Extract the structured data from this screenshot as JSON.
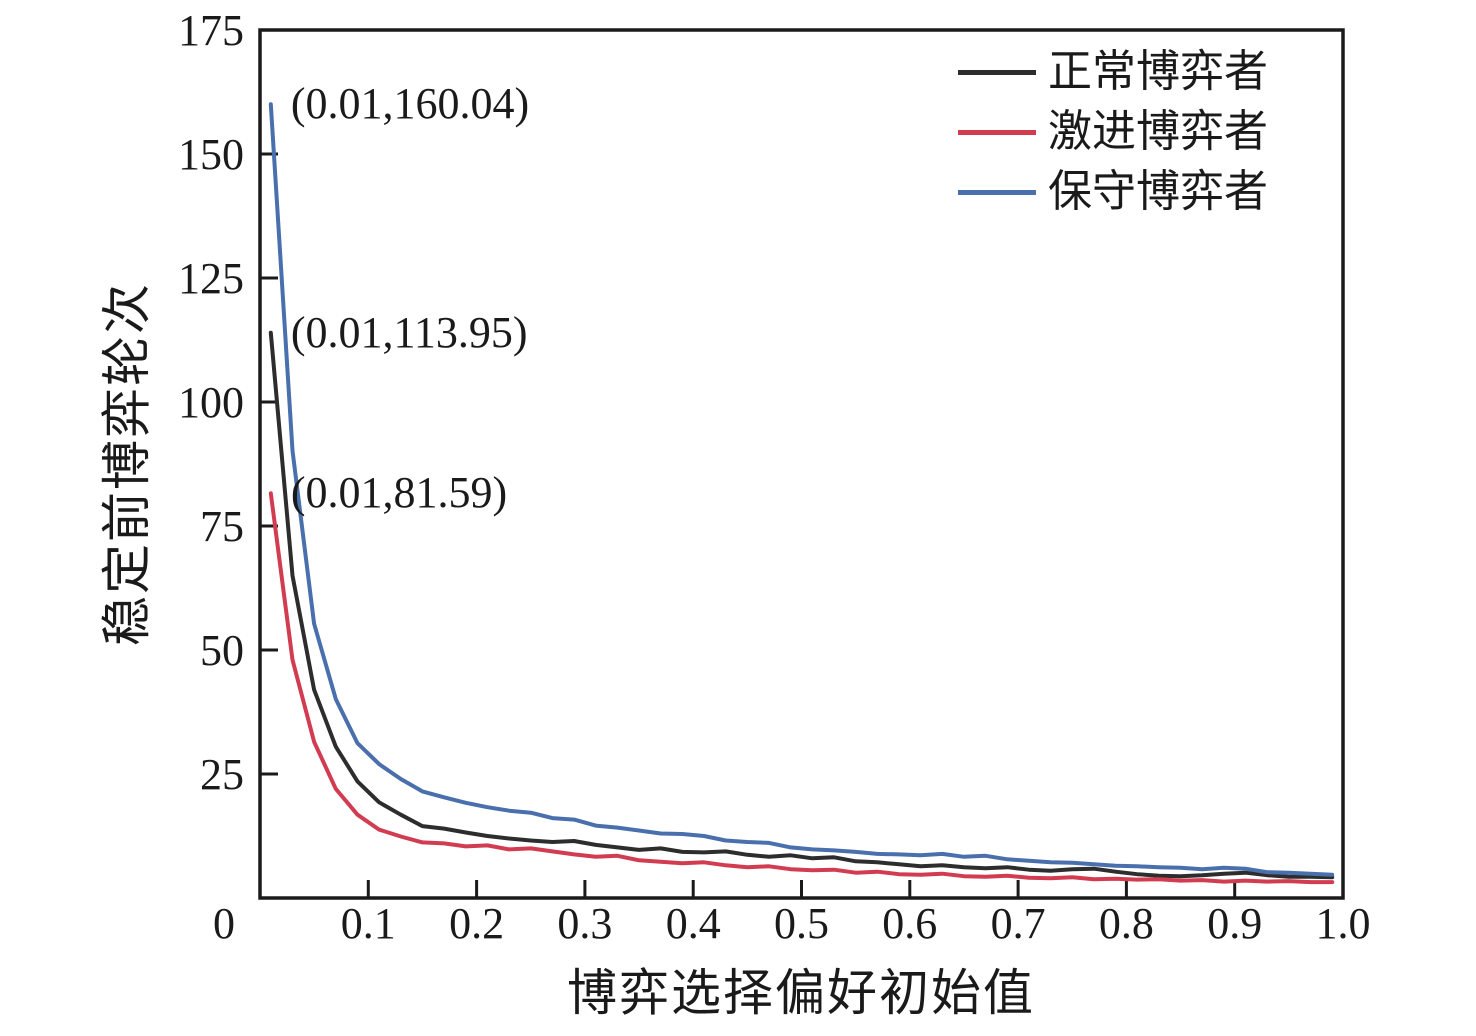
{
  "figure": {
    "background": "#ffffff",
    "axis_color": "#1a1a1a"
  },
  "chart_data": {
    "type": "line",
    "title": "",
    "xlabel": "博弈选择偏好初始值",
    "ylabel": "稳定前博弈轮次",
    "xlim": [
      0,
      1
    ],
    "ylim": [
      0,
      175
    ],
    "grid": false,
    "legend_position": "top-right-inside",
    "xticks": {
      "values": [
        0,
        0.1,
        0.2,
        0.3,
        0.4,
        0.5,
        0.6,
        0.7,
        0.8,
        0.9,
        1.0
      ],
      "labels": [
        "0",
        "0.1",
        "0.2",
        "0.3",
        "0.4",
        "0.5",
        "0.6",
        "0.7",
        "0.8",
        "0.9",
        "1.0"
      ]
    },
    "yticks": {
      "values": [
        25,
        50,
        75,
        100,
        125,
        150,
        175
      ],
      "labels": [
        "25",
        "50",
        "75",
        "100",
        "125",
        "150",
        "175"
      ]
    },
    "x": [
      0.01,
      0.03,
      0.05,
      0.07,
      0.09,
      0.11,
      0.13,
      0.15,
      0.17,
      0.19,
      0.21,
      0.23,
      0.25,
      0.27,
      0.29,
      0.31,
      0.33,
      0.35,
      0.37,
      0.39,
      0.41,
      0.43,
      0.45,
      0.47,
      0.49,
      0.51,
      0.53,
      0.55,
      0.57,
      0.59,
      0.61,
      0.63,
      0.65,
      0.67,
      0.69,
      0.71,
      0.73,
      0.75,
      0.77,
      0.79,
      0.81,
      0.83,
      0.85,
      0.87,
      0.89,
      0.91,
      0.93,
      0.95,
      0.97,
      0.99
    ],
    "series": [
      {
        "name": "正常博弈者",
        "color": "#2d2d2d",
        "start_point": [
          0.01,
          113.95
        ],
        "values": [
          113.95,
          65.0,
          42.0,
          30.5,
          23.5,
          19.3,
          16.8,
          14.5,
          14.0,
          13.2,
          12.5,
          12.0,
          11.6,
          11.3,
          11.5,
          10.7,
          10.2,
          9.7,
          10.0,
          9.3,
          9.2,
          9.4,
          8.7,
          8.3,
          8.6,
          8.0,
          8.2,
          7.4,
          7.2,
          6.8,
          6.4,
          6.6,
          6.2,
          6.0,
          6.2,
          5.7,
          5.5,
          5.8,
          5.9,
          5.3,
          4.8,
          4.5,
          4.4,
          4.6,
          4.9,
          5.1,
          4.6,
          4.3,
          4.3,
          4.2
        ]
      },
      {
        "name": "激进博弈者",
        "color": "#d23c51",
        "start_point": [
          0.01,
          81.59
        ],
        "values": [
          81.59,
          48.0,
          31.5,
          22.0,
          16.8,
          13.8,
          12.4,
          11.2,
          11.0,
          10.4,
          10.6,
          9.8,
          10.0,
          9.4,
          8.8,
          8.3,
          8.5,
          7.6,
          7.3,
          7.0,
          7.2,
          6.6,
          6.2,
          6.4,
          5.8,
          5.6,
          5.7,
          5.1,
          5.3,
          4.8,
          4.7,
          4.9,
          4.4,
          4.3,
          4.5,
          4.1,
          4.0,
          4.2,
          3.8,
          3.9,
          3.7,
          3.8,
          3.5,
          3.6,
          3.3,
          3.5,
          3.3,
          3.4,
          3.2,
          3.2
        ]
      },
      {
        "name": "保守博弈者",
        "color": "#4a6fad",
        "start_point": [
          0.01,
          160.04
        ],
        "values": [
          160.04,
          90.2,
          55.3,
          40.1,
          31.2,
          27.0,
          24.0,
          21.5,
          20.3,
          19.2,
          18.3,
          17.6,
          17.2,
          16.1,
          15.8,
          14.6,
          14.2,
          13.6,
          13.0,
          12.9,
          12.5,
          11.6,
          11.3,
          11.1,
          10.2,
          9.8,
          9.6,
          9.3,
          8.9,
          8.8,
          8.6,
          8.9,
          8.3,
          8.5,
          7.8,
          7.5,
          7.2,
          7.1,
          6.8,
          6.5,
          6.4,
          6.2,
          6.1,
          5.8,
          6.1,
          5.9,
          5.2,
          5.1,
          4.9,
          4.7
        ]
      }
    ],
    "legend": [
      "正常博弈者",
      "激进博弈者",
      "保守博弈者"
    ],
    "annotations": [
      {
        "label": "(0.01,160.04)",
        "x": 0.01,
        "y": 160.04
      },
      {
        "label": "(0.01,113.95)",
        "x": 0.01,
        "y": 113.95
      },
      {
        "label": "(0.01,81.59)",
        "x": 0.01,
        "y": 81.59
      }
    ]
  }
}
